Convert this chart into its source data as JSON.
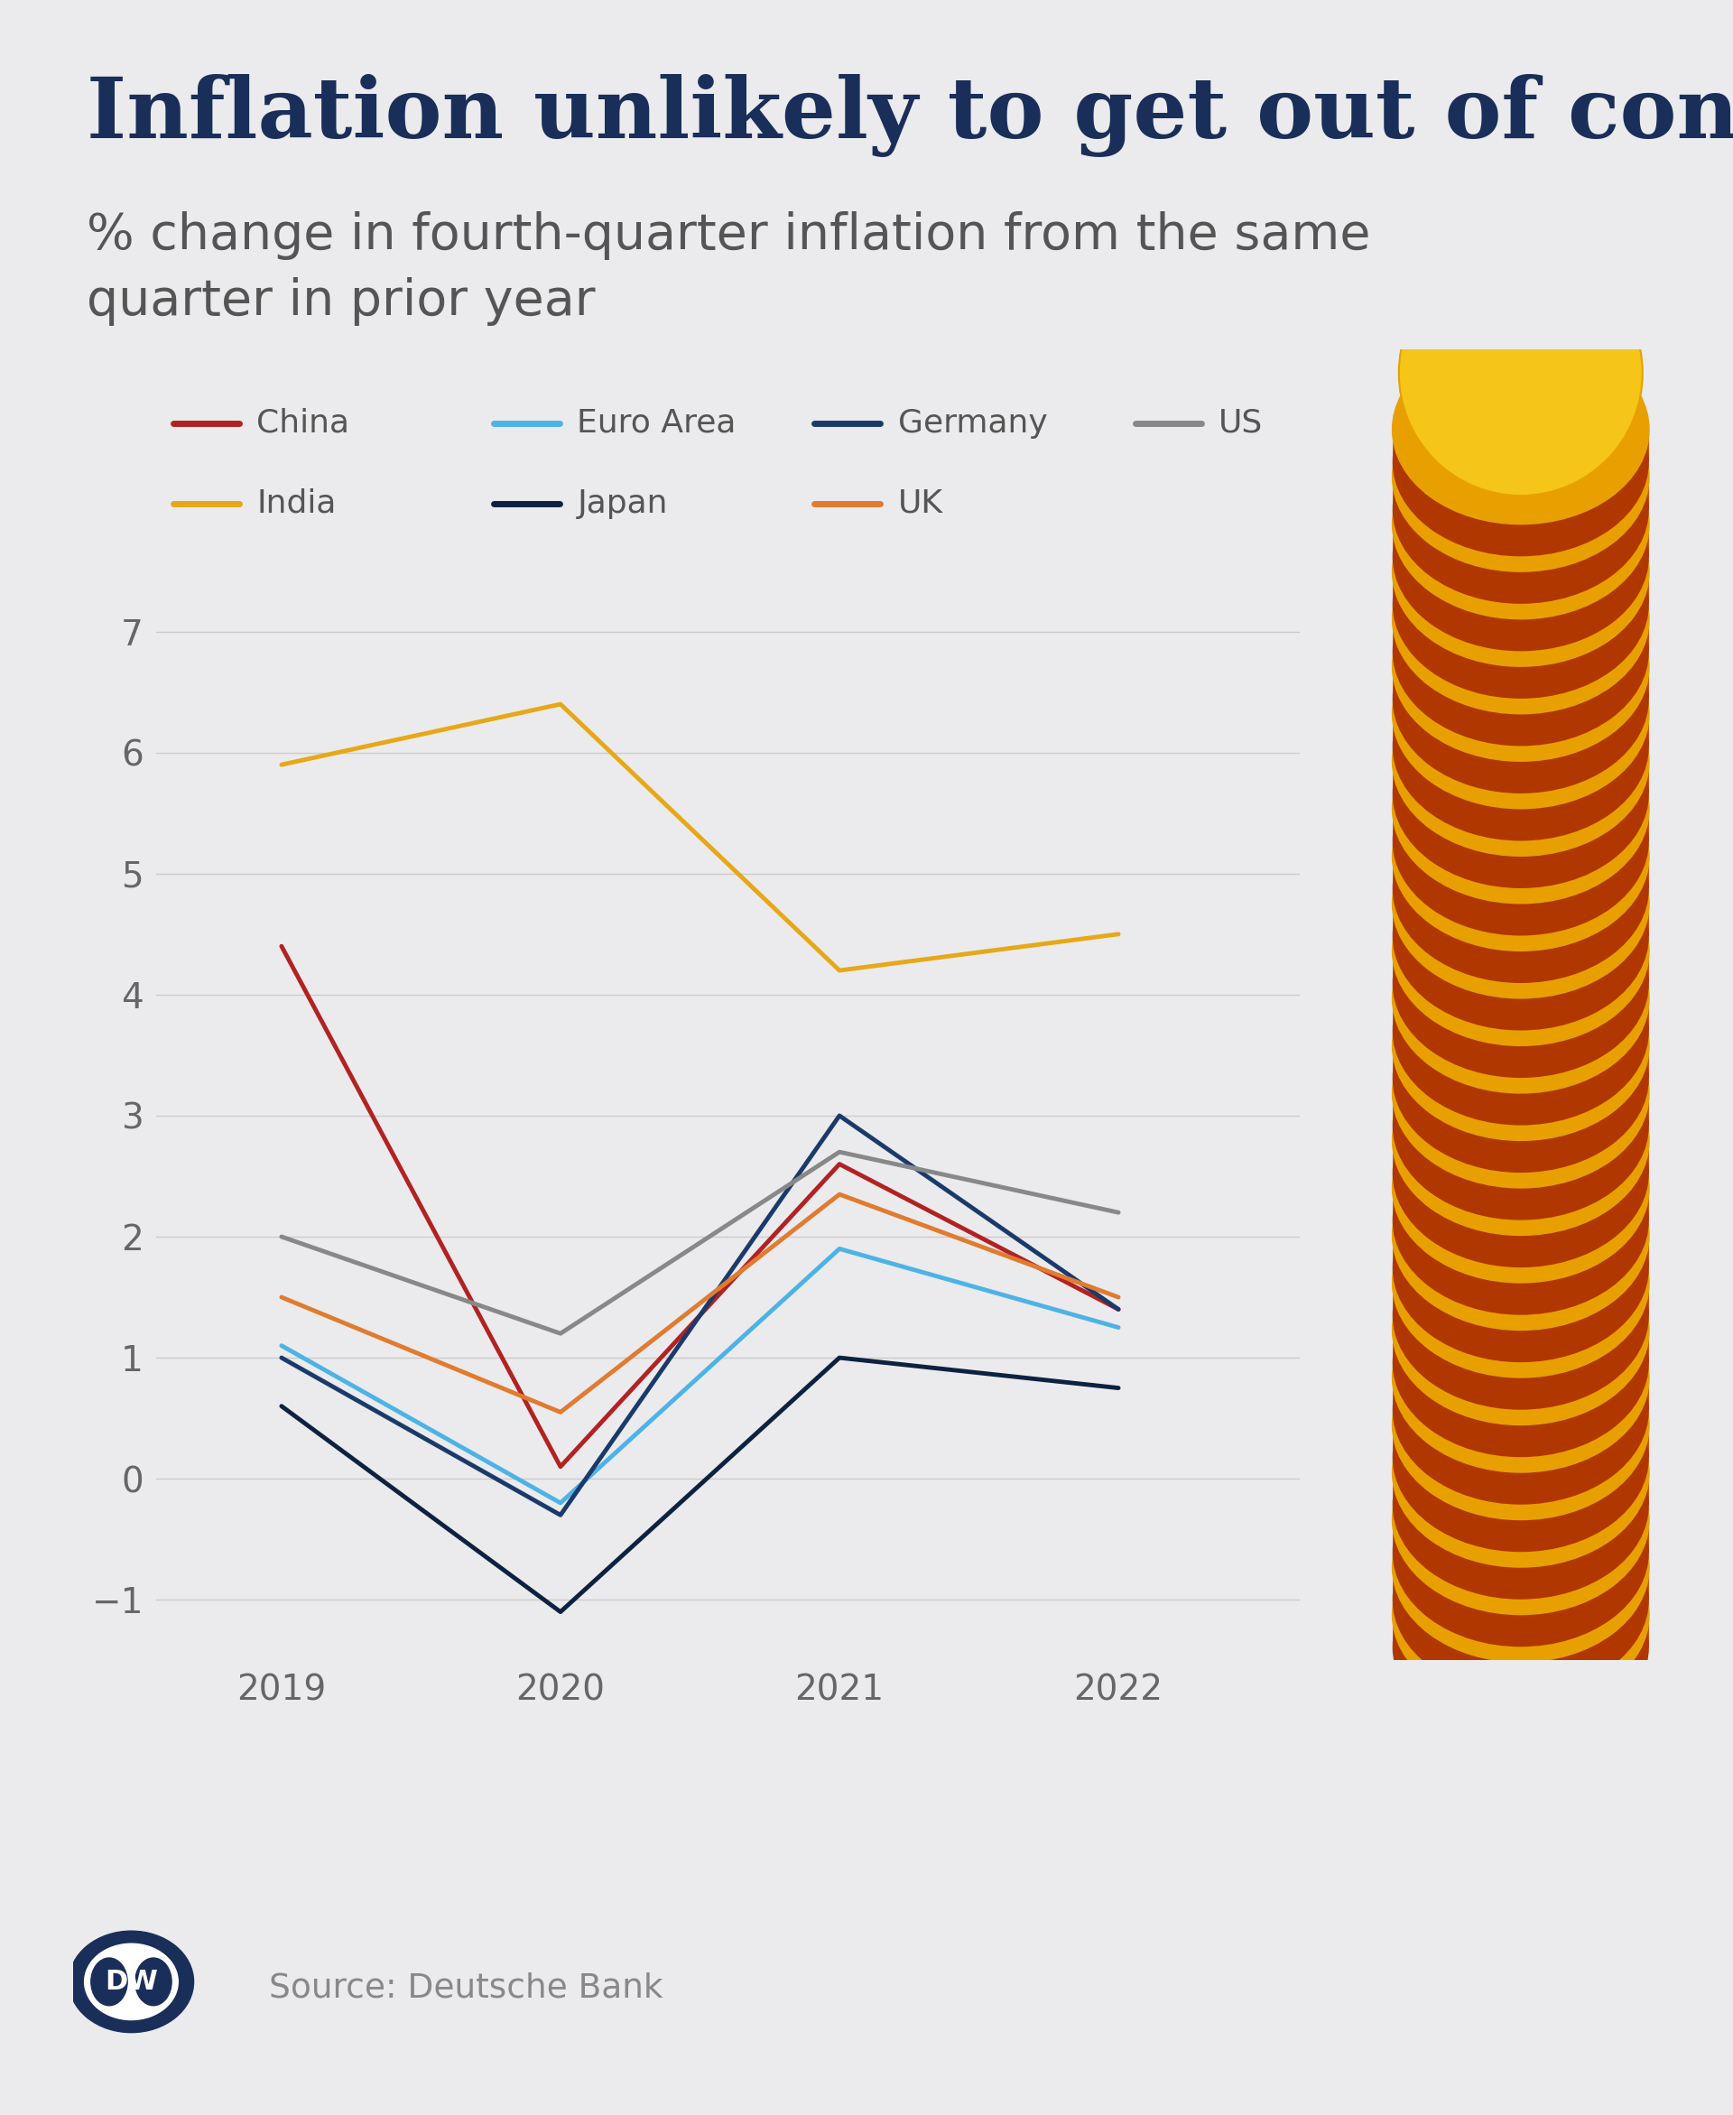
{
  "title": "Inflation unlikely to get out of control",
  "subtitle": "% change in fourth-quarter inflation from the same\nquarter in prior year",
  "background_color": "#ebebed",
  "title_color": "#1a2e5a",
  "subtitle_color": "#555555",
  "years": [
    2019,
    2020,
    2021,
    2022
  ],
  "series": [
    {
      "label": "China",
      "color": "#b22222",
      "data": [
        4.4,
        0.1,
        2.6,
        1.4
      ]
    },
    {
      "label": "Euro Area",
      "color": "#4db3e6",
      "data": [
        1.1,
        -0.2,
        1.9,
        1.25
      ]
    },
    {
      "label": "Germany",
      "color": "#1a3a6b",
      "data": [
        1.0,
        -0.3,
        3.0,
        1.4
      ]
    },
    {
      "label": "US",
      "color": "#888888",
      "data": [
        2.0,
        1.2,
        2.7,
        2.2
      ]
    },
    {
      "label": "India",
      "color": "#e6a817",
      "data": [
        5.9,
        6.4,
        4.2,
        4.5
      ]
    },
    {
      "label": "Japan",
      "color": "#0d2240",
      "data": [
        0.6,
        -1.1,
        1.0,
        0.75
      ]
    },
    {
      "label": "UK",
      "color": "#e07b30",
      "data": [
        1.5,
        0.55,
        2.35,
        1.5
      ]
    }
  ],
  "ylim": [
    -1.5,
    7.5
  ],
  "yticks": [
    -1,
    0,
    1,
    2,
    3,
    4,
    5,
    6,
    7
  ],
  "line_width": 3.5,
  "legend_text_color": "#555555",
  "axis_text_color": "#666666",
  "source_text": "Source: Deutsche Bank",
  "source_color": "#888888",
  "coin_top_color": "#f5c518",
  "coin_body_color": "#d45000",
  "coin_rim_color": "#e8a000",
  "coin_shadow_color": "#b03800",
  "n_coins": 26
}
